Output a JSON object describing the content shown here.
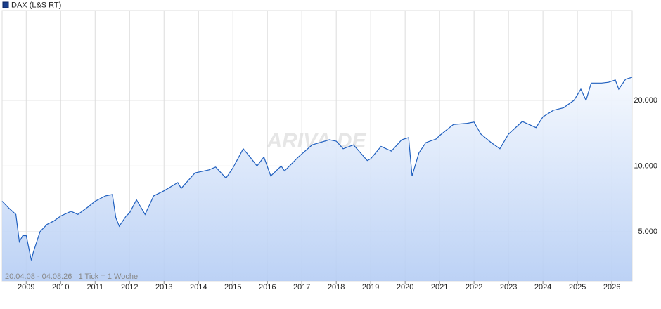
{
  "chart_data": {
    "type": "area",
    "legend": "DAX (L&S RT)",
    "footnote": "20.04.08 - 04.08.26   1 Tick = 1 Woche",
    "watermark": "ARIVA.DE",
    "log_scale": true,
    "grid": true,
    "xlim": [
      2008.3,
      2026.59
    ],
    "xticks": [
      2009,
      2010,
      2011,
      2012,
      2013,
      2014,
      2015,
      2016,
      2017,
      2018,
      2019,
      2020,
      2021,
      2022,
      2023,
      2024,
      2025,
      2026
    ],
    "ylim": [
      2975,
      51600
    ],
    "yticks": [
      {
        "value": 5000,
        "label": "5.000"
      },
      {
        "value": 10000,
        "label": "10.000"
      },
      {
        "value": 20000,
        "label": "20.000"
      }
    ],
    "x": [
      2008.3,
      2008.5,
      2008.7,
      2008.8,
      2008.9,
      2009.0,
      2009.15,
      2009.2,
      2009.4,
      2009.6,
      2009.8,
      2010.0,
      2010.3,
      2010.5,
      2010.8,
      2011.0,
      2011.3,
      2011.5,
      2011.6,
      2011.7,
      2011.9,
      2012.0,
      2012.2,
      2012.45,
      2012.7,
      2013.0,
      2013.4,
      2013.5,
      2013.9,
      2014.3,
      2014.5,
      2014.8,
      2015.0,
      2015.3,
      2015.5,
      2015.7,
      2015.9,
      2016.1,
      2016.4,
      2016.5,
      2016.9,
      2017.3,
      2017.8,
      2018.0,
      2018.2,
      2018.5,
      2018.9,
      2019.0,
      2019.3,
      2019.6,
      2019.9,
      2020.1,
      2020.2,
      2020.4,
      2020.6,
      2020.9,
      2021.0,
      2021.4,
      2021.8,
      2022.0,
      2022.2,
      2022.5,
      2022.75,
      2023.0,
      2023.4,
      2023.8,
      2024.0,
      2024.3,
      2024.6,
      2024.9,
      2025.1,
      2025.25,
      2025.4,
      2025.7,
      2025.9,
      2026.1,
      2026.2,
      2026.4,
      2026.59
    ],
    "series": [
      {
        "name": "DAX (L&S RT)",
        "color": "#1f5fbf",
        "values": [
          6900,
          6400,
          6000,
          4500,
          4800,
          4800,
          3700,
          4000,
          5000,
          5400,
          5600,
          5900,
          6200,
          6000,
          6500,
          6900,
          7300,
          7400,
          5800,
          5300,
          5900,
          6100,
          7000,
          6000,
          7300,
          7700,
          8400,
          7900,
          9300,
          9600,
          9900,
          8800,
          9800,
          12000,
          11000,
          10000,
          11000,
          9000,
          10000,
          9500,
          11000,
          12500,
          13200,
          13000,
          12000,
          12500,
          10600,
          10800,
          12300,
          11700,
          13200,
          13500,
          9000,
          11500,
          12800,
          13300,
          13800,
          15500,
          15700,
          15900,
          14000,
          12800,
          12000,
          14000,
          16000,
          15000,
          16800,
          18000,
          18500,
          20000,
          22500,
          20000,
          24000,
          24000,
          24200,
          24800,
          22500,
          25000,
          25500
        ]
      }
    ]
  }
}
